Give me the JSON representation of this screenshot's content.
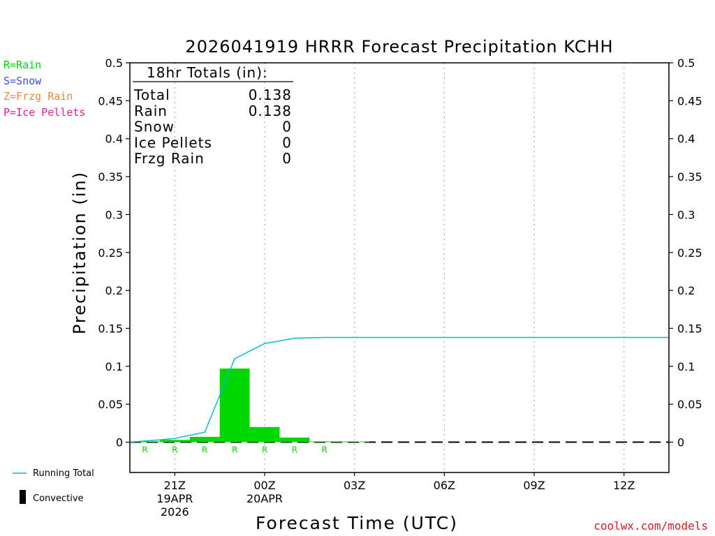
{
  "chart_data": {
    "type": "bar",
    "title": "2026041919 HRRR Forecast Precipitation KCHH",
    "xlabel": "Forecast Time (UTC)",
    "ylabel": "Precipitation (in)",
    "ylim": [
      -0.04,
      0.5
    ],
    "yticks": [
      "0",
      "0.05",
      "0.1",
      "0.15",
      "0.2",
      "0.25",
      "0.3",
      "0.35",
      "0.4",
      "0.45",
      "0.5"
    ],
    "xlim_hours": [
      -1.5,
      16.5
    ],
    "x_ticks": [
      {
        "hour": 0,
        "lines": [
          "21Z",
          "19APR",
          "2026"
        ]
      },
      {
        "hour": 3,
        "lines": [
          "00Z",
          "20APR"
        ]
      },
      {
        "hour": 6,
        "lines": [
          "03Z"
        ]
      },
      {
        "hour": 9,
        "lines": [
          "06Z"
        ]
      },
      {
        "hour": 12,
        "lines": [
          "09Z"
        ]
      },
      {
        "hour": 15,
        "lines": [
          "12Z"
        ]
      }
    ],
    "bar_hours": [
      -1,
      0,
      1,
      2,
      3,
      4,
      5,
      6
    ],
    "hourly_precip": [
      0.001,
      0.003,
      0.007,
      0.097,
      0.02,
      0.006,
      0.001,
      0.0
    ],
    "ptype_labels": [
      "R",
      "R",
      "R",
      "R",
      "R",
      "R",
      "R"
    ],
    "running_total": {
      "name": "Running Total",
      "hours": [
        -1.5,
        -0.5,
        0,
        1,
        2,
        3,
        4,
        5,
        16.5
      ],
      "values": [
        0.0,
        0.003,
        0.005,
        0.013,
        0.11,
        0.13,
        0.137,
        0.138,
        0.138
      ]
    },
    "totals_box": {
      "header": "18hr Totals (in):",
      "rows": [
        {
          "label": "Total",
          "value": "0.138"
        },
        {
          "label": "Rain",
          "value": "0.138"
        },
        {
          "label": "Snow",
          "value": "0"
        },
        {
          "label": "Ice Pellets",
          "value": "0"
        },
        {
          "label": "Frzg Rain",
          "value": "0"
        }
      ]
    },
    "grid": "vertical-dotted",
    "legend": "bottom-left",
    "legend_entries": [
      "Running Total",
      "Convective"
    ],
    "colors": {
      "rain": "#00d600",
      "running_total": "#00bcd4",
      "convective": "#000000",
      "grid": "#b0b0b0"
    }
  },
  "ptype_legend": [
    {
      "text": "R=Rain",
      "color": "#00d600"
    },
    {
      "text": "S=Snow",
      "color": "#3a50e0"
    },
    {
      "text": "Z=Frzg Rain",
      "color": "#e08a3a"
    },
    {
      "text": "P=Ice Pellets",
      "color": "#e02090"
    }
  ],
  "watermark": "coolwx.com/models"
}
